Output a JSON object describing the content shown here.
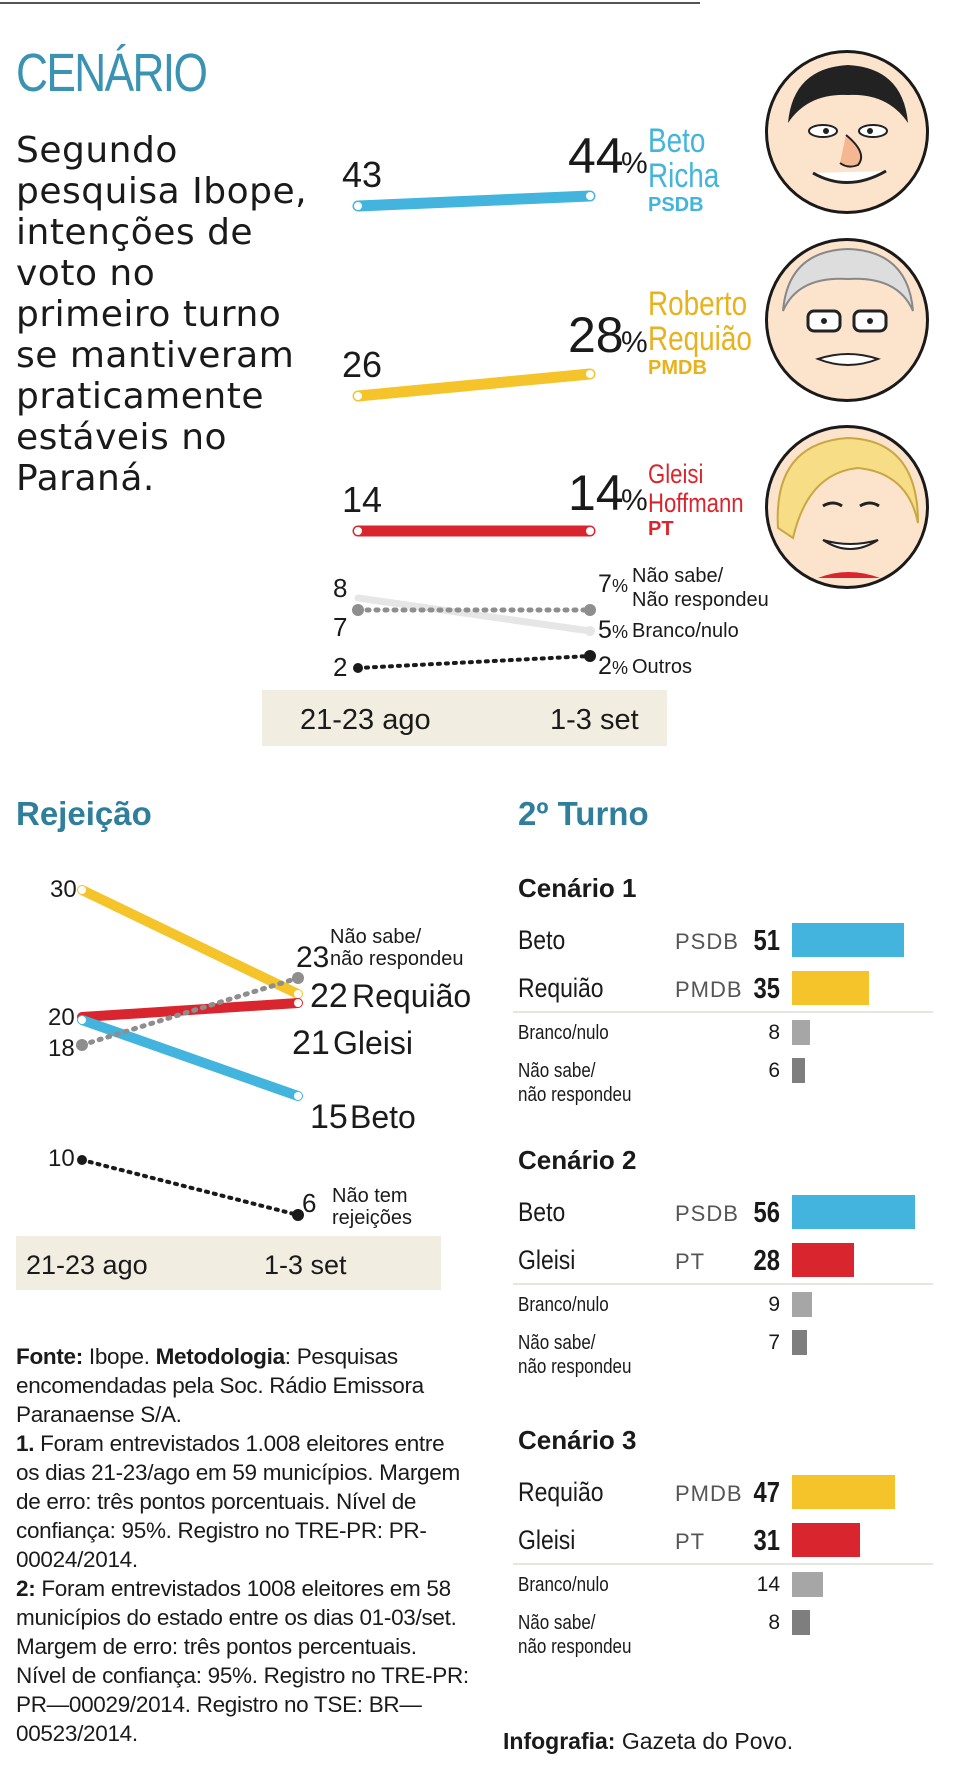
{
  "header": {
    "title": "CENÁRIO",
    "intro": "Segundo pesquisa Ibope, intenções de voto no primeiro turno se mantiveram praticamente estáveis no Paraná."
  },
  "colors": {
    "beto": "#42b4dd",
    "requiao": "#f5c32a",
    "gleisi": "#d9262e",
    "gray_light": "#e6e6e6",
    "gray_mid": "#8e8e8e",
    "dark": "#1a1a1a",
    "band": "#f2ede1",
    "accent": "#2f7f9c"
  },
  "first_round": {
    "candidates": [
      {
        "first": "Beto",
        "last": "Richa",
        "party": "PSDB",
        "v1": "43",
        "v2": "44",
        "pct": "%",
        "color_key": "beto"
      },
      {
        "first": "Roberto",
        "last": "Requião",
        "party": "PMDB",
        "v1": "26",
        "v2": "28",
        "pct": "%",
        "color_key": "requiao"
      },
      {
        "first": "Gleisi",
        "last": "Hoffmann",
        "party": "PT",
        "v1": "14",
        "v2": "14",
        "pct": "%",
        "color_key": "gleisi"
      }
    ],
    "others": [
      {
        "label1": "Não sabe/",
        "label2": "Não respondeu",
        "v1": "8",
        "v2": "7",
        "pct": "%"
      },
      {
        "label1": "Branco/nulo",
        "label2": "",
        "v1": "7",
        "v2": "5",
        "pct": "%"
      },
      {
        "label1": "Outros",
        "label2": "",
        "v1": "2",
        "v2": "2",
        "pct": "%"
      }
    ],
    "dates": [
      "21-23 ago",
      "1-3 set"
    ]
  },
  "rejeicao": {
    "title": "Rejeição",
    "dates": [
      "21-23 ago",
      "1-3 set"
    ],
    "series": [
      {
        "name": "Requião",
        "v1": "30",
        "v2": "22"
      },
      {
        "name": "Gleisi",
        "v1": "20",
        "v2": "21"
      },
      {
        "name": "Beto",
        "v1": "20",
        "v2": "15"
      },
      {
        "name": "Não sabe/ não respondeu",
        "v1": "18",
        "v2": "23",
        "label1": "Não sabe/",
        "label2": "não respondeu"
      },
      {
        "name": "Não tem rejeições",
        "v1": "10",
        "v2": "6",
        "label1": "Não tem",
        "label2": "rejeições"
      }
    ]
  },
  "second_round": {
    "title": "2º Turno",
    "scenarios": [
      {
        "title": "Cenário 1",
        "rows": [
          {
            "name": "Beto",
            "party": "PSDB",
            "value": 51,
            "color_key": "beto"
          },
          {
            "name": "Requião",
            "party": "PMDB",
            "value": 35,
            "color_key": "requiao"
          }
        ],
        "branco_label": "Branco/nulo",
        "branco": 8,
        "nao_sabe_label1": "Não sabe/",
        "nao_sabe_label2": "não respondeu",
        "nao_sabe": 6
      },
      {
        "title": "Cenário 2",
        "rows": [
          {
            "name": "Beto",
            "party": "PSDB",
            "value": 56,
            "color_key": "beto"
          },
          {
            "name": "Gleisi",
            "party": "PT",
            "value": 28,
            "color_key": "gleisi"
          }
        ],
        "branco_label": "Branco/nulo",
        "branco": 9,
        "nao_sabe_label1": "Não sabe/",
        "nao_sabe_label2": "não respondeu",
        "nao_sabe": 7
      },
      {
        "title": "Cenário 3",
        "rows": [
          {
            "name": "Requião",
            "party": "PMDB",
            "value": 47,
            "color_key": "requiao"
          },
          {
            "name": "Gleisi",
            "party": "PT",
            "value": 31,
            "color_key": "gleisi"
          }
        ],
        "branco_label": "Branco/nulo",
        "branco": 14,
        "nao_sabe_label1": "Não sabe/",
        "nao_sabe_label2": "não respondeu",
        "nao_sabe": 8
      }
    ]
  },
  "footnote": {
    "fonte_label": "Fonte:",
    "fonte": " Ibope. ",
    "metodologia_label": "Metodologia",
    "metodologia": ": Pesquisas encomendadas pela Soc. Rádio Emissora Paranaense S/A.",
    "n1_label": "1.",
    "n1": " Foram entrevistados 1.008 eleitores entre os dias 21-23/ago em 59 municípios. Margem de erro: três pontos porcentuais. Nível de confiança: 95%. Registro no TRE-PR: PR-00024/2014.",
    "n2_label": "2:",
    "n2": " Foram entrevistados 1008 eleitores em 58 municípios do estado entre os dias 01-03/set. Margem de erro: três pontos percentuais. Nível de confiança: 95%. Registro no TRE-PR: PR—00029/2014. Registro no TSE: BR—00523/2014."
  },
  "credit": {
    "label": "Infografia:",
    "text": " Gazeta do Povo."
  },
  "chart_data": [
    {
      "type": "line",
      "title": "",
      "x": [
        "21-23 ago",
        "1-3 set"
      ],
      "series": [
        {
          "name": "Beto Richa PSDB",
          "values": [
            43,
            44
          ]
        },
        {
          "name": "Roberto Requião PMDB",
          "values": [
            26,
            28
          ]
        },
        {
          "name": "Gleisi Hoffmann PT",
          "values": [
            14,
            14
          ]
        },
        {
          "name": "Não sabe/Não respondeu",
          "values": [
            8,
            7
          ]
        },
        {
          "name": "Branco/nulo",
          "values": [
            7,
            5
          ]
        },
        {
          "name": "Outros",
          "values": [
            2,
            2
          ]
        }
      ]
    },
    {
      "type": "line",
      "title": "Rejeição",
      "x": [
        "21-23 ago",
        "1-3 set"
      ],
      "series": [
        {
          "name": "Requião",
          "values": [
            30,
            22
          ]
        },
        {
          "name": "Gleisi",
          "values": [
            20,
            21
          ]
        },
        {
          "name": "Beto",
          "values": [
            20,
            15
          ]
        },
        {
          "name": "Não sabe/ não respondeu",
          "values": [
            18,
            23
          ]
        },
        {
          "name": "Não tem rejeições",
          "values": [
            10,
            6
          ]
        }
      ]
    },
    {
      "type": "bar",
      "title": "Cenário 1",
      "categories": [
        "Beto",
        "Requião",
        "Branco/nulo",
        "Não sabe/ não respondeu"
      ],
      "values": [
        51,
        35,
        8,
        6
      ]
    },
    {
      "type": "bar",
      "title": "Cenário 2",
      "categories": [
        "Beto",
        "Gleisi",
        "Branco/nulo",
        "Não sabe/ não respondeu"
      ],
      "values": [
        56,
        28,
        9,
        7
      ]
    },
    {
      "type": "bar",
      "title": "Cenário 3",
      "categories": [
        "Requião",
        "Gleisi",
        "Branco/nulo",
        "Não sabe/ não respondeu"
      ],
      "values": [
        47,
        31,
        14,
        8
      ]
    }
  ]
}
